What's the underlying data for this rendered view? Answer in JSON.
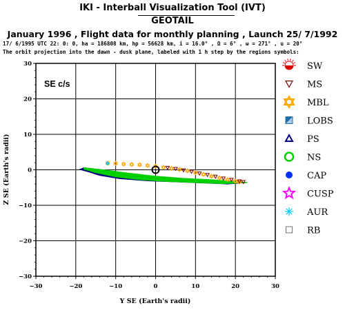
{
  "header": {
    "tool_title": "IKI - Interball Visualization Tool (IVT)",
    "satellite": "GEOTAIL",
    "subtitle": "January 1996 ,  Flight data for monthly planning ,   Launch 25/ 7/1992",
    "orbit_params": "17/ 6/1995 UTC 22: 0: 0, ha = 186808 km, hp = 56628 km, i = 16.0° , Ω =   6° , ω = 271° , u =  20°",
    "description": "The orbit projection into the dawn - dusk plane, labeled with 1 h step by the regions symbols:"
  },
  "chart_data": {
    "type": "scatter",
    "panel_label": "SE c/s",
    "xlabel": "Y SE (Earth's radii)",
    "ylabel": "Z SE (Earth's radii)",
    "xlim": [
      -30,
      30
    ],
    "ylim": [
      -30,
      30
    ],
    "xticks": [
      "−30",
      "−20",
      "−10",
      "0",
      "10",
      "20",
      "30"
    ],
    "yticks": [
      "30",
      "20",
      "10",
      "0",
      "−10",
      "−20",
      "−30"
    ],
    "grid": true,
    "earth_marker": {
      "y": 0,
      "z": 0
    },
    "legend_position": "right",
    "legend": [
      {
        "label": "SW",
        "symbol": "sun-icon",
        "color": "#e00000"
      },
      {
        "label": "MS",
        "symbol": "triangle-down-icon",
        "color": "#7a0000"
      },
      {
        "label": "MBL",
        "symbol": "star-of-david-icon",
        "color": "#ffa500"
      },
      {
        "label": "LOBS",
        "symbol": "half-square-icon",
        "color": "#1c6ea8"
      },
      {
        "label": "PS",
        "symbol": "triangle-up-icon",
        "color": "#000080"
      },
      {
        "label": "NS",
        "symbol": "circle-icon",
        "color": "#00d000"
      },
      {
        "label": "CAP",
        "symbol": "filled-circle-icon",
        "color": "#0030ff"
      },
      {
        "label": "CUSP",
        "symbol": "star-icon",
        "color": "#ff00ff"
      },
      {
        "label": "AUR",
        "symbol": "asterisk-icon",
        "color": "#00c8ff"
      },
      {
        "label": "RB",
        "symbol": "square-icon",
        "color": "#707070"
      }
    ],
    "series": [
      {
        "region": "PS",
        "color": "#000080",
        "outline": [
          [
            -18,
            0.6
          ],
          [
            -15,
            0.2
          ],
          [
            -11,
            -0.6
          ],
          [
            -6,
            -1.3
          ],
          [
            0,
            -2.1
          ],
          [
            6,
            -2.6
          ],
          [
            12,
            -3.0
          ],
          [
            18,
            -3.3
          ],
          [
            22,
            -3.5
          ],
          [
            23,
            -3.6
          ],
          [
            18,
            -4.0
          ],
          [
            12,
            -3.7
          ],
          [
            5,
            -3.4
          ],
          [
            -2,
            -3.1
          ],
          [
            -9,
            -2.5
          ],
          [
            -14,
            -1.6
          ],
          [
            -17,
            -0.5
          ],
          [
            -19,
            0.1
          ]
        ]
      },
      {
        "region": "NS",
        "color": "#00d000",
        "outline": [
          [
            -18,
            0.6
          ],
          [
            -13,
            0.0
          ],
          [
            -7,
            -0.9
          ],
          [
            0,
            -1.8
          ],
          [
            7,
            -2.4
          ],
          [
            14,
            -2.8
          ],
          [
            19,
            -3.2
          ],
          [
            22,
            -3.5
          ],
          [
            23,
            -3.6
          ],
          [
            17,
            -3.9
          ],
          [
            10,
            -3.6
          ],
          [
            3,
            -3.3
          ],
          [
            -4,
            -2.8
          ],
          [
            -10,
            -2.0
          ],
          [
            -15,
            -0.8
          ],
          [
            -18,
            0.2
          ]
        ]
      },
      {
        "region": "MBL",
        "color": "#ffa500",
        "x": [
          -12,
          -10,
          -8,
          -6,
          -4,
          -2,
          0,
          2,
          4,
          6,
          8,
          10,
          12,
          14,
          16,
          18,
          20,
          21
        ],
        "y": [
          1.9,
          1.8,
          1.6,
          1.5,
          1.4,
          1.2,
          1.0,
          0.7,
          0.4,
          0.1,
          -0.3,
          -0.8,
          -1.3,
          -1.8,
          -2.3,
          -2.8,
          -3.2,
          -3.4
        ]
      },
      {
        "region": "MS",
        "color": "#7a0000",
        "x": [
          3,
          5,
          7,
          9,
          11,
          13,
          15,
          17,
          19,
          21,
          22
        ],
        "y": [
          0.6,
          0.3,
          -0.1,
          -0.5,
          -1.0,
          -1.4,
          -1.9,
          -2.4,
          -2.8,
          -3.2,
          -3.4
        ]
      },
      {
        "region": "AUR",
        "color": "#00c8ff",
        "x": [
          -12
        ],
        "y": [
          1.8
        ]
      }
    ]
  }
}
